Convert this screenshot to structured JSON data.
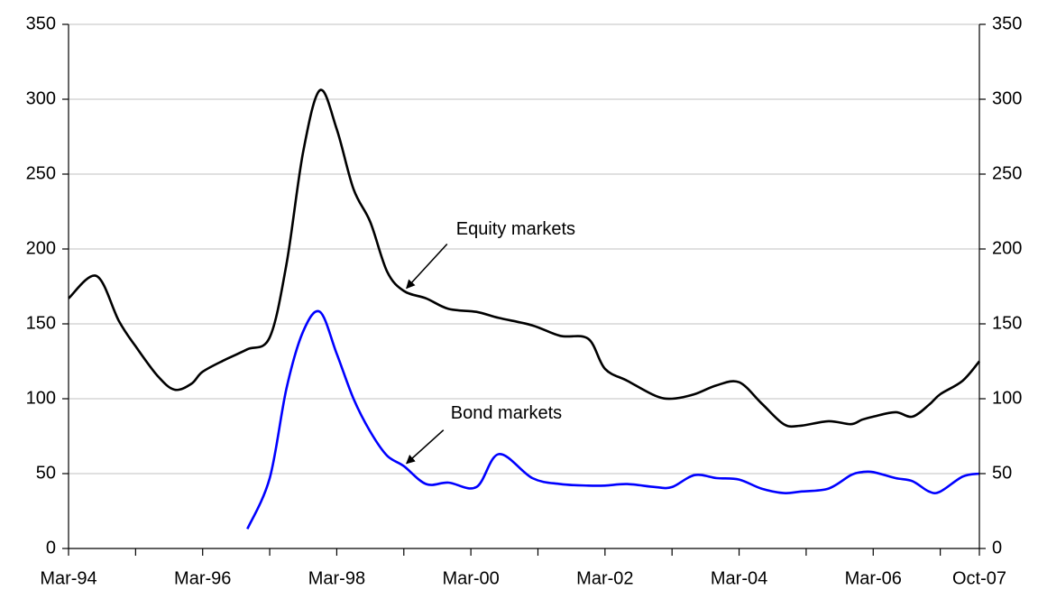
{
  "chart_data": {
    "type": "line",
    "x": [
      "1994-03",
      "1994-08",
      "1994-12",
      "1995-03",
      "1995-07",
      "1995-10",
      "1996-01",
      "1996-03",
      "1996-07",
      "1996-11",
      "1997-03",
      "1997-06",
      "1997-09",
      "1997-12",
      "1998-03",
      "1998-06",
      "1998-09",
      "1998-12",
      "1999-03",
      "1999-07",
      "1999-11",
      "2000-04",
      "2000-08",
      "2001-02",
      "2001-07",
      "2001-12",
      "2002-03",
      "2002-07",
      "2002-12",
      "2003-03",
      "2003-07",
      "2003-11",
      "2004-03",
      "2004-07",
      "2004-11",
      "2005-02",
      "2005-07",
      "2005-11",
      "2006-01",
      "2006-03",
      "2006-07",
      "2006-10",
      "2007-01",
      "2007-03",
      "2007-07",
      "2007-10"
    ],
    "series": [
      {
        "name": "Equity markets",
        "color": "#000000",
        "values": [
          167,
          182,
          152,
          135,
          115,
          106,
          110,
          118,
          126,
          133,
          141,
          190,
          265,
          306,
          280,
          240,
          218,
          185,
          172,
          167,
          160,
          158,
          154,
          149,
          142,
          140,
          120,
          112,
          102,
          100,
          103,
          109,
          111,
          97,
          83,
          82,
          85,
          83,
          86,
          88,
          91,
          88,
          96,
          103,
          112,
          125
        ]
      },
      {
        "name": "Bond markets",
        "color": "#0000ff",
        "values": [
          null,
          null,
          null,
          null,
          null,
          null,
          null,
          null,
          null,
          13,
          47,
          107,
          145,
          158,
          130,
          100,
          78,
          62,
          55,
          43,
          44,
          41,
          63,
          47,
          43,
          42,
          42,
          43,
          41,
          41,
          49,
          47,
          46,
          40,
          37,
          38,
          40,
          49,
          51,
          51,
          47,
          45,
          38,
          38,
          48,
          50
        ]
      }
    ],
    "xlim": [
      "1994-03",
      "2007-10"
    ],
    "xticks": [
      {
        "value": "1994-03",
        "label": "Mar-94"
      },
      {
        "value": "1996-03",
        "label": "Mar-96"
      },
      {
        "value": "1998-03",
        "label": "Mar-98"
      },
      {
        "value": "2000-03",
        "label": "Mar-00"
      },
      {
        "value": "2002-03",
        "label": "Mar-02"
      },
      {
        "value": "2004-03",
        "label": "Mar-04"
      },
      {
        "value": "2006-03",
        "label": "Mar-06"
      },
      {
        "value": "2007-10",
        "label": "Oct-07"
      }
    ],
    "xminorticks": [
      "1995-03",
      "1997-03",
      "1999-03",
      "2001-03",
      "2003-03",
      "2005-03",
      "2007-03"
    ],
    "ylim": [
      0,
      350
    ],
    "yticks": [
      0,
      50,
      100,
      150,
      200,
      250,
      300,
      350
    ],
    "y2lim": [
      0,
      350
    ],
    "y2ticks": [
      0,
      50,
      100,
      150,
      200,
      250,
      300,
      350
    ],
    "grid": true,
    "annotations": [
      {
        "text": "Equity markets",
        "series": 0,
        "point": "1999-03"
      },
      {
        "text": "Bond markets",
        "series": 1,
        "point": "1999-03"
      }
    ]
  }
}
